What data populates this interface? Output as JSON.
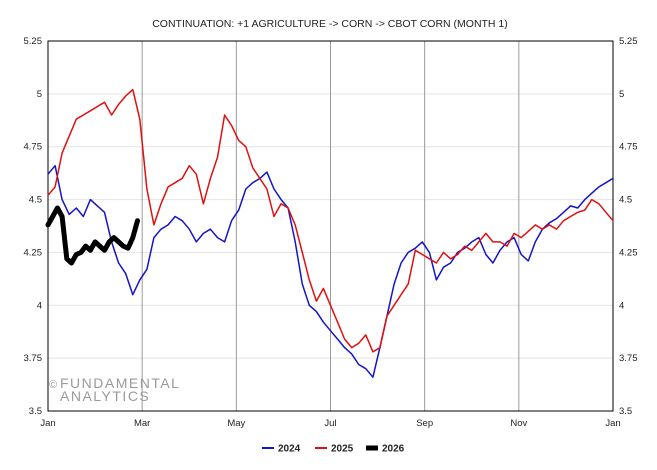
{
  "chart_data": {
    "type": "line",
    "title": "CONTINUATION: +1 AGRICULTURE -> CORN -> CBOT CORN (MONTH 1)",
    "x_tick_labels": [
      "Jan",
      "Mar",
      "May",
      "Jul",
      "Sep",
      "Nov",
      "Jan"
    ],
    "y_ticks": [
      3.5,
      3.75,
      4,
      4.25,
      4.5,
      4.75,
      5,
      5.25
    ],
    "y_tick_labels": [
      "3.5",
      "3.75",
      "4",
      "4.25",
      "4.5",
      "4.75",
      "5",
      "5.25"
    ],
    "ylim": [
      3.5,
      5.25
    ],
    "xlim_month": [
      0,
      12
    ],
    "grid": true,
    "legend_position": "bottom-center",
    "watermark": {
      "symbol": "©",
      "line1": "FUNDAMENTAL",
      "line2": "ANALYTICS"
    },
    "series": [
      {
        "name": "2024",
        "color": "#1414c8",
        "x_month": [
          0.0,
          0.15,
          0.3,
          0.45,
          0.6,
          0.75,
          0.9,
          1.05,
          1.2,
          1.35,
          1.5,
          1.65,
          1.8,
          1.95,
          2.1,
          2.25,
          2.4,
          2.55,
          2.7,
          2.85,
          3.0,
          3.15,
          3.3,
          3.45,
          3.6,
          3.75,
          3.9,
          4.05,
          4.2,
          4.35,
          4.5,
          4.65,
          4.8,
          4.95,
          5.1,
          5.25,
          5.4,
          5.55,
          5.7,
          5.85,
          6.0,
          6.15,
          6.3,
          6.45,
          6.6,
          6.75,
          6.9,
          7.05,
          7.2,
          7.35,
          7.5,
          7.65,
          7.8,
          7.95,
          8.1,
          8.25,
          8.4,
          8.55,
          8.7,
          8.85,
          9.0,
          9.15,
          9.3,
          9.45,
          9.6,
          9.75,
          9.9,
          10.05,
          10.2,
          10.35,
          10.5,
          10.65,
          10.8,
          10.95,
          11.1,
          11.25,
          11.4,
          11.55,
          11.7,
          11.85,
          12.0
        ],
        "values": [
          4.62,
          4.66,
          4.5,
          4.43,
          4.46,
          4.42,
          4.5,
          4.47,
          4.44,
          4.3,
          4.2,
          4.15,
          4.05,
          4.12,
          4.17,
          4.32,
          4.36,
          4.38,
          4.42,
          4.4,
          4.36,
          4.3,
          4.34,
          4.36,
          4.32,
          4.3,
          4.4,
          4.45,
          4.55,
          4.58,
          4.6,
          4.63,
          4.55,
          4.5,
          4.46,
          4.3,
          4.1,
          4.0,
          3.97,
          3.92,
          3.88,
          3.84,
          3.8,
          3.77,
          3.72,
          3.7,
          3.66,
          3.8,
          3.95,
          4.1,
          4.2,
          4.25,
          4.27,
          4.3,
          4.25,
          4.12,
          4.18,
          4.2,
          4.25,
          4.27,
          4.3,
          4.32,
          4.24,
          4.2,
          4.26,
          4.3,
          4.32,
          4.24,
          4.21,
          4.3,
          4.36,
          4.39,
          4.41,
          4.44,
          4.47,
          4.46,
          4.5,
          4.53,
          4.56,
          4.58,
          4.6
        ]
      },
      {
        "name": "2025",
        "color": "#e01010",
        "x_month": [
          0.0,
          0.15,
          0.3,
          0.45,
          0.6,
          0.75,
          0.9,
          1.05,
          1.2,
          1.35,
          1.5,
          1.65,
          1.8,
          1.95,
          2.1,
          2.25,
          2.4,
          2.55,
          2.7,
          2.85,
          3.0,
          3.15,
          3.3,
          3.45,
          3.6,
          3.75,
          3.9,
          4.05,
          4.2,
          4.35,
          4.5,
          4.65,
          4.8,
          4.95,
          5.1,
          5.25,
          5.4,
          5.55,
          5.7,
          5.85,
          6.0,
          6.15,
          6.3,
          6.45,
          6.6,
          6.75,
          6.9,
          7.05,
          7.2,
          7.35,
          7.5,
          7.65,
          7.8,
          7.95,
          8.1,
          8.25,
          8.4,
          8.55,
          8.7,
          8.85,
          9.0,
          9.15,
          9.3,
          9.45,
          9.6,
          9.75,
          9.9,
          10.05,
          10.2,
          10.35,
          10.5,
          10.65,
          10.8,
          10.95,
          11.1,
          11.25,
          11.4,
          11.55,
          11.7,
          11.85,
          12.0
        ],
        "values": [
          4.52,
          4.56,
          4.72,
          4.8,
          4.88,
          4.9,
          4.92,
          4.94,
          4.96,
          4.9,
          4.95,
          4.99,
          5.02,
          4.88,
          4.55,
          4.38,
          4.48,
          4.56,
          4.58,
          4.6,
          4.66,
          4.62,
          4.48,
          4.6,
          4.7,
          4.9,
          4.85,
          4.78,
          4.75,
          4.65,
          4.6,
          4.55,
          4.42,
          4.48,
          4.46,
          4.38,
          4.25,
          4.12,
          4.02,
          4.08,
          4.0,
          3.92,
          3.84,
          3.8,
          3.82,
          3.86,
          3.78,
          3.8,
          3.95,
          4.0,
          4.05,
          4.1,
          4.26,
          4.24,
          4.22,
          4.2,
          4.25,
          4.22,
          4.24,
          4.28,
          4.26,
          4.3,
          4.34,
          4.3,
          4.3,
          4.28,
          4.34,
          4.32,
          4.35,
          4.38,
          4.36,
          4.38,
          4.36,
          4.4,
          4.42,
          4.44,
          4.45,
          4.5,
          4.48,
          4.44,
          4.4
        ]
      },
      {
        "name": "2026",
        "color": "#000000",
        "x_month": [
          0.0,
          0.1,
          0.2,
          0.3,
          0.4,
          0.5,
          0.6,
          0.7,
          0.8,
          0.9,
          1.0,
          1.1,
          1.2,
          1.3,
          1.4,
          1.5,
          1.6,
          1.7,
          1.8,
          1.9
        ],
        "values": [
          4.38,
          4.42,
          4.46,
          4.42,
          4.22,
          4.2,
          4.24,
          4.25,
          4.28,
          4.26,
          4.3,
          4.28,
          4.26,
          4.3,
          4.32,
          4.3,
          4.28,
          4.27,
          4.32,
          4.4
        ]
      }
    ]
  }
}
